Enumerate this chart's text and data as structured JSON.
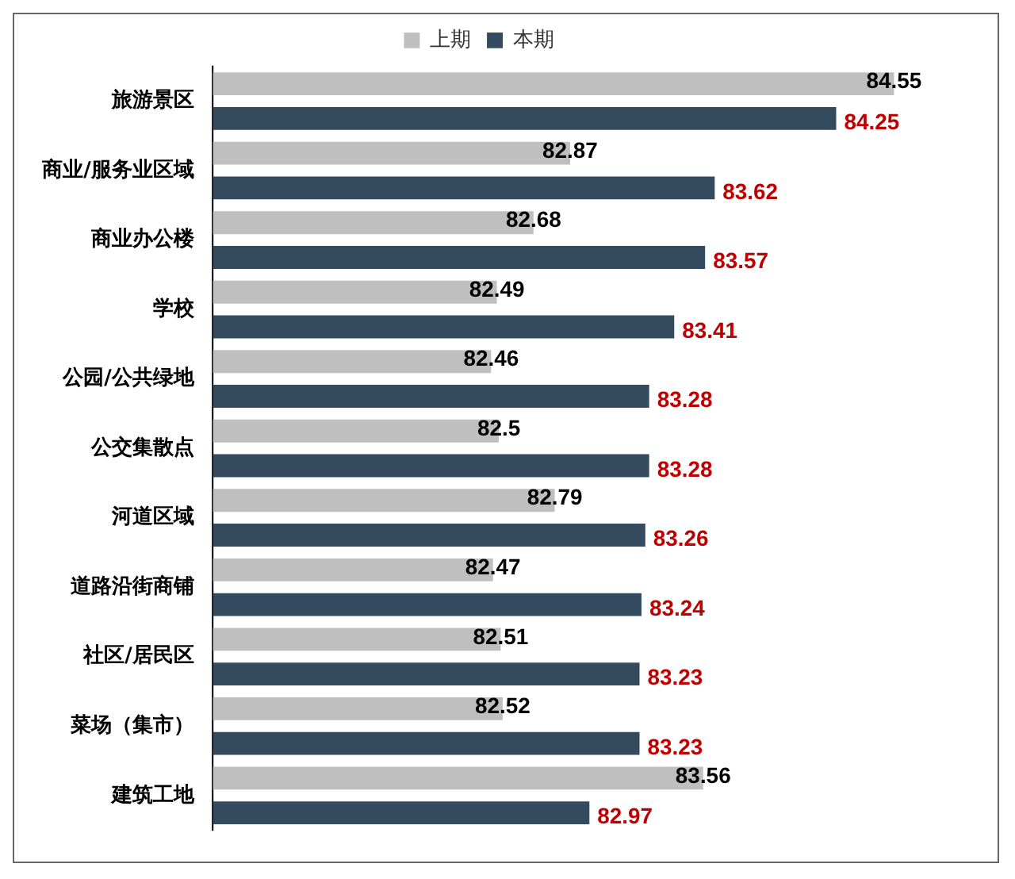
{
  "chart_data": {
    "type": "bar",
    "orientation": "horizontal",
    "categories": [
      "旅游景区",
      "商业/服务业区域",
      "商业办公楼",
      "学校",
      "公园/公共绿地",
      "公交集散点",
      "河道区域",
      "道路沿街商铺",
      "社区/居民区",
      "菜场（集市）",
      "建筑工地"
    ],
    "series": [
      {
        "name": "上期",
        "color": "#bfbfbf",
        "values": [
          84.55,
          82.87,
          82.68,
          82.49,
          82.46,
          82.5,
          82.79,
          82.47,
          82.51,
          82.52,
          83.56
        ]
      },
      {
        "name": "本期",
        "color": "#344a5e",
        "values": [
          84.25,
          83.62,
          83.57,
          83.41,
          83.28,
          83.28,
          83.26,
          83.24,
          83.23,
          83.23,
          82.97
        ]
      }
    ],
    "tick_labels": "y",
    "data_labels": true,
    "legend": "top"
  }
}
